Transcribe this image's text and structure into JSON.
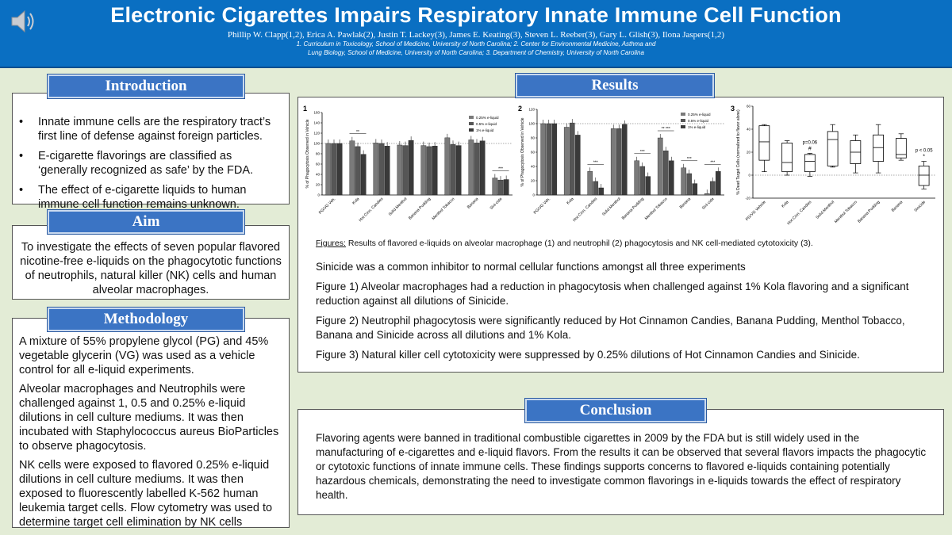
{
  "header": {
    "title": "Electronic Cigarettes Impairs Respiratory Innate Immune Cell Function",
    "authors": "Phillip W. Clapp(1,2), Erica A. Pawlak(2), Justin T. Lackey(3), James E. Keating(3), Steven L. Reeber(3), Gary L. Glish(3), Ilona Jaspers(1,2)",
    "affiliations_1": "1. Curriculum in Toxicology, School of Medicine, University of North Carolina; 2. Center for Environmental Medicine, Asthma and",
    "affiliations_2": "Lung Biology, School of Medicine, University of North Carolina; 3. Department of Chemistry, University of North Carolina"
  },
  "introduction": {
    "heading": "Introduction",
    "bullets": [
      "Innate immune cells are the respiratory tract’s first line of defense against foreign particles.",
      "E-cigarette flavorings are classified as ‘generally recognized as safe’ by the FDA.",
      "The effect of e-cigarette liquids to human immune cell function remains unknown."
    ]
  },
  "aim": {
    "heading": "Aim",
    "text": "To investigate the effects of seven popular flavored nicotine-free e-liquids on the phagocytotic functions of neutrophils, natural killer (NK) cells and human alveolar macrophages."
  },
  "methodology": {
    "heading": "Methodology",
    "paragraphs": [
      "A mixture of 55% propylene glycol (PG) and 45% vegetable glycerin (VG) was used as a vehicle control for all e-liquid experiments.",
      "Alveolar macrophages and Neutrophils were challenged against 1, 0.5 and 0.25% e-liquid dilutions in cell culture mediums. It was then incubated with Staphylococcus aureus BioParticles to observe phagocytosis.",
      "NK cells were exposed to flavored 0.25% e-liquid dilutions in cell culture mediums. It was then exposed to fluorescently labelled K-562 human leukemia target cells. Flow cytometry was used to determine target cell elimination by NK cells"
    ]
  },
  "results": {
    "heading": "Results",
    "caption_label": "Figures:",
    "caption": " Results of flavored e-liquids on alveolar macrophage (1) and neutrophil (2) phagocytosis and NK cell-mediated cytotoxicity (3).",
    "paragraphs": [
      "Sinicide was a common inhibitor to normal cellular functions amongst all three experiments",
      "Figure 1) Alveolar macrophages had a reduction in phagocytosis when challenged against 1% Kola flavoring and a significant reduction against all dilutions of Sinicide.",
      "Figure 2) Neutrophil phagocytosis were significantly reduced by Hot Cinnamon Candies, Banana Pudding, Menthol Tobacco, Banana and Sinicide across all dilutions and 1% Kola.",
      "Figure 3) Natural killer cell cytotoxicity were suppressed by 0.25% dilutions of Hot Cinnamon Candies and Sinicide."
    ]
  },
  "conclusion": {
    "heading": "Conclusion",
    "text": "Flavoring agents were banned in traditional combustible cigarettes in 2009 by the FDA but is still widely used in the manufacturing of e-cigarettes and e-liquid flavors. From the results it can be observed that several flavors impacts the phagocytic or cytotoxic functions of innate immune cells. These findings supports concerns to flavored e-liquids containing potentially hazardous chemicals, demonstrating the need to investigate common flavorings in e-liquids towards the effect of respiratory health."
  },
  "icons": {
    "speaker": "speaker-icon"
  },
  "colors": {
    "header": "#0a6fc2",
    "section_heading": "#3b74c4",
    "background": "#e3ecd6"
  },
  "chart_data": [
    {
      "type": "bar",
      "panel": "1",
      "ylabel": "% of Phagocytosis Observed in Vehicle",
      "ylim": [
        0,
        160
      ],
      "yticks": [
        0,
        20,
        40,
        60,
        80,
        100,
        120,
        140,
        160
      ],
      "reference_line": 100,
      "legend": "top-right",
      "categories": [
        "PG/VG Veh.",
        "Kola",
        "Hot Cinn. Candies",
        "Solid Menthol",
        "Banana Pudding",
        "Menthol Tobacco",
        "Banana",
        "Sini-cide"
      ],
      "series": [
        {
          "name": "0.25% e-liquid",
          "values": [
            100,
            105,
            101,
            97,
            96,
            111,
            107,
            33
          ]
        },
        {
          "name": "0.5% e-liquid",
          "values": [
            100,
            94,
            100,
            96,
            94,
            98,
            101,
            29
          ]
        },
        {
          "name": "1% e-liquid",
          "values": [
            100,
            79,
            95,
            106,
            95,
            96,
            105,
            30
          ]
        }
      ],
      "annotations": [
        {
          "category": "Kola",
          "text": "**"
        },
        {
          "category": "Sini-cide",
          "text": "***"
        }
      ]
    },
    {
      "type": "bar",
      "panel": "2",
      "ylabel": "% of Phagocytosis Observed in Vehicle",
      "ylim": [
        0,
        120
      ],
      "yticks": [
        0,
        20,
        40,
        60,
        80,
        100,
        120
      ],
      "reference_line": 100,
      "legend": "right",
      "categories": [
        "PG/VG Veh.",
        "Kola",
        "Hot Cinn. Candies",
        "Solid Menthol",
        "Banana Pudding",
        "Menthol Tobacco",
        "Banana",
        "Sini-cide"
      ],
      "series": [
        {
          "name": "0.25% e-liquid",
          "values": [
            100,
            95,
            33,
            93,
            48,
            80,
            38,
            2
          ]
        },
        {
          "name": "0.5% e-liquid",
          "values": [
            100,
            101,
            19,
            93,
            40,
            62,
            30,
            19
          ]
        },
        {
          "name": "1% e-liquid",
          "values": [
            100,
            84,
            10,
            99,
            26,
            48,
            16,
            33
          ]
        }
      ],
      "annotations": [
        {
          "category": "Hot Cinn. Candies",
          "text": "***"
        },
        {
          "category": "Banana Pudding",
          "text": "***"
        },
        {
          "category": "Menthol Tobacco",
          "text": "** ***"
        },
        {
          "category": "Banana",
          "text": "***"
        },
        {
          "category": "Sini-cide",
          "text": "***"
        }
      ]
    },
    {
      "type": "box",
      "panel": "3",
      "ylabel": "% Dead Target Cells (normalized to flavor alone)",
      "ylim": [
        -20,
        60
      ],
      "yticks": [
        -20,
        0,
        20,
        40,
        60
      ],
      "reference_line": 0,
      "categories": [
        "PG/VG Vehicle",
        "Kola",
        "Hot Cinn. Candies",
        "Solid Menthol",
        "Menthol Tobacco",
        "Banana Pudding",
        "Banana",
        "Sinicide"
      ],
      "boxes": [
        [
          3,
          13,
          29,
          43,
          44
        ],
        [
          0,
          3,
          11,
          28,
          30
        ],
        [
          -1,
          3,
          12,
          18,
          19
        ],
        [
          7,
          8,
          31,
          38,
          44
        ],
        [
          2,
          10,
          20,
          30,
          35
        ],
        [
          2,
          12,
          24,
          35,
          44
        ],
        [
          13,
          15,
          18,
          32,
          36
        ],
        [
          -12,
          -9,
          0,
          8,
          12
        ]
      ],
      "annotations": [
        {
          "category": "Hot Cinn. Candies",
          "text": "p=0.06",
          "mark": "#"
        },
        {
          "category": "Sinicide",
          "text": "p < 0.05",
          "mark": "*"
        }
      ]
    }
  ]
}
